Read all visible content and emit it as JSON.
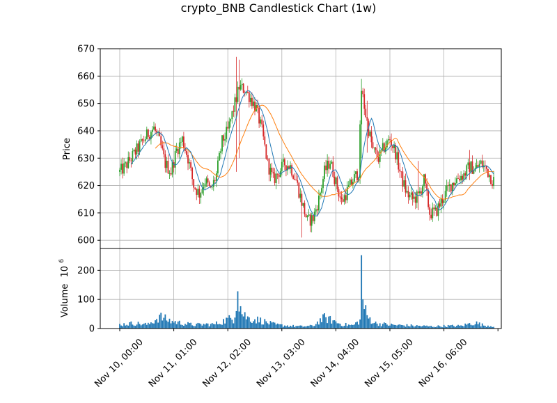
{
  "chart_data": {
    "type": "candlestick",
    "title": "crypto_BNB Candlestick Chart (1w)",
    "price_panel": {
      "ylabel": "Price",
      "ylim": [
        597,
        670
      ],
      "yticks": [
        600,
        610,
        620,
        630,
        640,
        650,
        660,
        670
      ],
      "grid": true
    },
    "volume_panel": {
      "ylabel": "Volume",
      "ylabel_exponent": "10^6",
      "ylim": [
        0,
        275
      ],
      "yticks": [
        0,
        100,
        200
      ],
      "grid": true
    },
    "x_ticks": [
      "Nov 10, 00:00",
      "Nov 11, 01:00",
      "Nov 12, 02:00",
      "Nov 13, 03:00",
      "Nov 14, 04:00",
      "Nov 15, 05:00",
      "Nov 16, 06:00"
    ],
    "colors": {
      "up": "#2ca02c",
      "down": "#d62728",
      "ma_short": "#1f77b4",
      "ma_long": "#ff7f0e",
      "volume": "#1f77b4",
      "grid": "#b0b0b0"
    },
    "price_path": [
      [
        0,
        625
      ],
      [
        4,
        627
      ],
      [
        8,
        630
      ],
      [
        12,
        633
      ],
      [
        16,
        636
      ],
      [
        20,
        639
      ],
      [
        24,
        641
      ],
      [
        28,
        636
      ],
      [
        32,
        628
      ],
      [
        36,
        625
      ],
      [
        40,
        633
      ],
      [
        44,
        637
      ],
      [
        48,
        630
      ],
      [
        52,
        620
      ],
      [
        56,
        617
      ],
      [
        60,
        622
      ],
      [
        64,
        618
      ],
      [
        68,
        624
      ],
      [
        72,
        636
      ],
      [
        76,
        640
      ],
      [
        80,
        648
      ],
      [
        84,
        656
      ],
      [
        88,
        655
      ],
      [
        92,
        652
      ],
      [
        96,
        648
      ],
      [
        100,
        640
      ],
      [
        104,
        628
      ],
      [
        108,
        622
      ],
      [
        112,
        625
      ],
      [
        116,
        628
      ],
      [
        120,
        627
      ],
      [
        124,
        622
      ],
      [
        128,
        614
      ],
      [
        132,
        607
      ],
      [
        136,
        608
      ],
      [
        140,
        615
      ],
      [
        144,
        625
      ],
      [
        148,
        629
      ],
      [
        152,
        621
      ],
      [
        156,
        614
      ],
      [
        160,
        618
      ],
      [
        164,
        622
      ],
      [
        168,
        625
      ],
      [
        170,
        655
      ],
      [
        174,
        643
      ],
      [
        178,
        633
      ],
      [
        182,
        630
      ],
      [
        186,
        634
      ],
      [
        190,
        637
      ],
      [
        194,
        632
      ],
      [
        198,
        623
      ],
      [
        202,
        617
      ],
      [
        206,
        615
      ],
      [
        210,
        616
      ],
      [
        214,
        622
      ],
      [
        218,
        610
      ],
      [
        222,
        610
      ],
      [
        226,
        614
      ],
      [
        230,
        618
      ],
      [
        234,
        621
      ],
      [
        238,
        623
      ],
      [
        242,
        624
      ],
      [
        246,
        627
      ],
      [
        250,
        626
      ],
      [
        254,
        628
      ],
      [
        258,
        626
      ],
      [
        262,
        622
      ]
    ],
    "volume_path": [
      [
        0,
        15
      ],
      [
        10,
        20
      ],
      [
        20,
        15
      ],
      [
        28,
        45
      ],
      [
        36,
        28
      ],
      [
        44,
        20
      ],
      [
        52,
        14
      ],
      [
        60,
        16
      ],
      [
        66,
        16
      ],
      [
        70,
        22
      ],
      [
        76,
        35
      ],
      [
        80,
        38
      ],
      [
        83,
        128
      ],
      [
        86,
        60
      ],
      [
        90,
        40
      ],
      [
        100,
        30
      ],
      [
        104,
        22
      ],
      [
        110,
        14
      ],
      [
        120,
        10
      ],
      [
        128,
        8
      ],
      [
        136,
        10
      ],
      [
        140,
        28
      ],
      [
        144,
        40
      ],
      [
        150,
        30
      ],
      [
        156,
        16
      ],
      [
        164,
        12
      ],
      [
        169,
        30
      ],
      [
        170,
        252
      ],
      [
        171,
        100
      ],
      [
        174,
        45
      ],
      [
        180,
        20
      ],
      [
        190,
        14
      ],
      [
        200,
        12
      ],
      [
        210,
        10
      ],
      [
        220,
        8
      ],
      [
        230,
        10
      ],
      [
        240,
        10
      ],
      [
        246,
        18
      ],
      [
        250,
        22
      ],
      [
        256,
        12
      ],
      [
        262,
        10
      ]
    ],
    "spikes": [
      [
        82,
        667,
        625
      ],
      [
        84,
        666,
        630
      ],
      [
        128,
        618,
        601
      ],
      [
        170,
        659,
        630
      ],
      [
        174,
        651,
        632
      ],
      [
        210,
        629,
        611
      ],
      [
        246,
        633,
        622
      ]
    ],
    "ma_short_window": 9,
    "ma_long_window": 26
  }
}
